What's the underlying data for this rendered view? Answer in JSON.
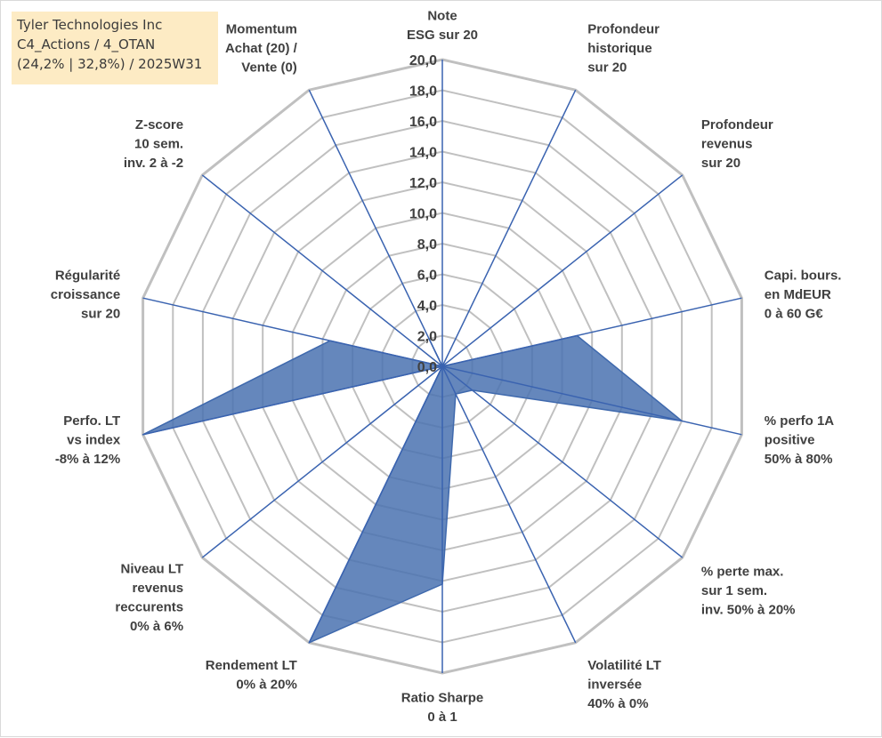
{
  "info": {
    "company": "Tyler Technologies Inc",
    "classification": "C4_Actions / 4_OTAN",
    "stats": "(24,2% | 32,8%) / 2025W31"
  },
  "chart_data": {
    "type": "radar",
    "title": "",
    "r_range": [
      0,
      20
    ],
    "r_ticks": [
      "0,0",
      "2,0",
      "4,0",
      "6,0",
      "8,0",
      "10,0",
      "12,0",
      "14,0",
      "16,0",
      "18,0",
      "20,0"
    ],
    "grid": true,
    "axes": [
      {
        "label": [
          "Note",
          "ESG sur 20"
        ],
        "value": 0
      },
      {
        "label": [
          "Profondeur",
          "historique",
          "sur 20"
        ],
        "value": 0
      },
      {
        "label": [
          "Profondeur",
          "revenus",
          "sur 20"
        ],
        "value": 0
      },
      {
        "label": [
          "Capi. bours.",
          "en MdEUR",
          "0 à 60 G€"
        ],
        "value": 9.0
      },
      {
        "label": [
          "% perfo 1A",
          "positive",
          "50% à 80%"
        ],
        "value": 16.0
      },
      {
        "label": [
          "% perte max.",
          "sur 1 sem.",
          "inv. 50% à 20%"
        ],
        "value": 2.5
      },
      {
        "label": [
          "Volatilité LT",
          "inversée",
          "40% à 0%"
        ],
        "value": 2.0
      },
      {
        "label": [
          "Ratio Sharpe",
          "0 à 1"
        ],
        "value": 14.2
      },
      {
        "label": [
          "Rendement LT",
          "0% à 20%"
        ],
        "value": 20.0
      },
      {
        "label": [
          "Niveau LT",
          "revenus",
          "reccurents",
          "0% à 6%"
        ],
        "value": 0
      },
      {
        "label": [
          "Perfo. LT",
          "vs index",
          "-8% à 12%"
        ],
        "value": 20.0
      },
      {
        "label": [
          "Régularité",
          "croissance",
          "sur 20"
        ],
        "value": 7.5
      },
      {
        "label": [
          "Z-score",
          "10 sem.",
          "inv. 2 à -2"
        ],
        "value": 0
      },
      {
        "label": [
          "Momentum",
          "Achat (20) /",
          "Vente (0)"
        ],
        "value": 2.0
      }
    ],
    "series": [
      {
        "values": [
          0,
          0,
          0,
          9.0,
          16.0,
          2.5,
          2.0,
          14.2,
          20.0,
          0,
          20.0,
          7.5,
          0,
          2.0
        ]
      }
    ],
    "colors": {
      "fill": "#4a72b0",
      "stroke": "#3f69ad",
      "spoke": "#3a63b0",
      "grid": "#c0c0c0",
      "tick": "#404040"
    }
  }
}
